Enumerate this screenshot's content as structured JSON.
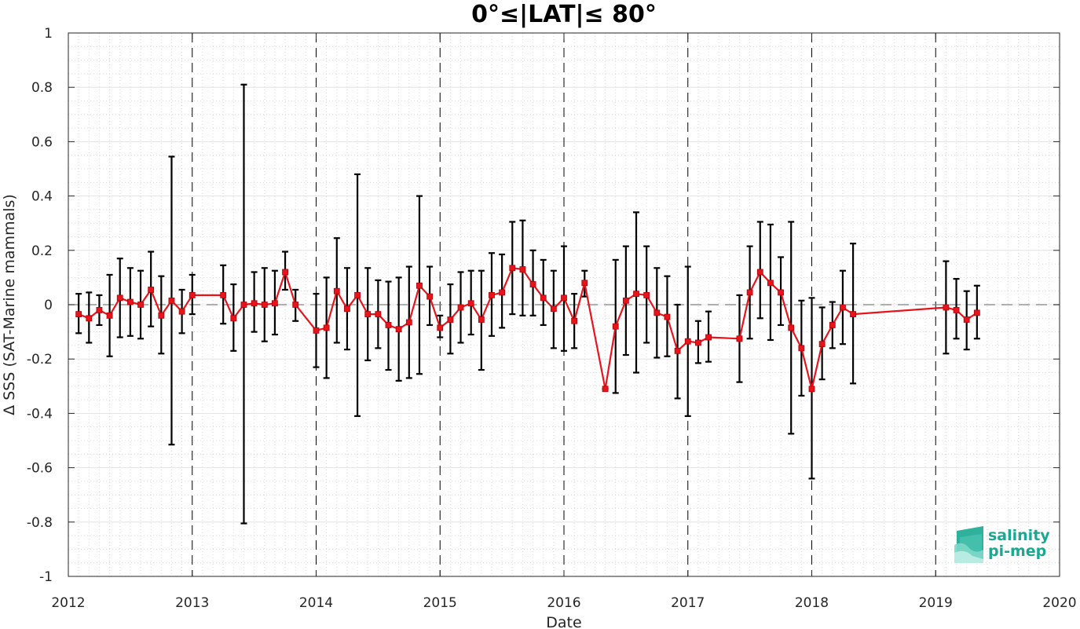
{
  "chart_data": {
    "type": "line",
    "title": "0°≤|LAT|≤ 80°",
    "xlabel": "Date",
    "ylabel": "Δ SSS (SAT-Marine mammals)",
    "xlim": [
      2012,
      2020
    ],
    "ylim": [
      -1,
      1
    ],
    "xticks": [
      "2012",
      "2013",
      "2014",
      "2015",
      "2016",
      "2017",
      "2018",
      "2019",
      "2020"
    ],
    "yticks": [
      "1",
      "0.8",
      "0.6",
      "0.4",
      "0.2",
      "0",
      "-0.2",
      "-0.4",
      "-0.6",
      "-0.8",
      "-1"
    ],
    "grid": true,
    "year_dividers": "dashed vertical lines at each year",
    "zero_line": "dashed horizontal line at 0",
    "colors": {
      "series": "#e8141c",
      "error_bars": "#000000",
      "zero_line": "#7f7f7f",
      "logo": "#1aa893"
    },
    "logo": {
      "line1": "salinity",
      "line2": "pi-mep"
    },
    "series": [
      {
        "x": [
          "2012-02",
          "2012-03",
          "2012-04",
          "2012-05",
          "2012-06",
          "2012-07",
          "2012-08",
          "2012-09",
          "2012-10",
          "2012-11",
          "2012-12",
          "2013-01",
          "2013-04",
          "2013-05",
          "2013-06",
          "2013-07",
          "2013-08",
          "2013-09",
          "2013-10",
          "2013-11",
          "2014-01",
          "2014-02",
          "2014-03",
          "2014-04",
          "2014-05",
          "2014-06",
          "2014-07",
          "2014-08",
          "2014-09",
          "2014-10",
          "2014-11",
          "2014-12",
          "2015-01",
          "2015-02",
          "2015-03",
          "2015-04",
          "2015-05",
          "2015-06",
          "2015-07",
          "2015-08",
          "2015-09",
          "2015-10",
          "2015-11",
          "2015-12",
          "2016-01",
          "2016-02",
          "2016-03",
          "2016-05",
          "2016-06",
          "2016-07",
          "2016-08",
          "2016-09",
          "2016-10",
          "2016-11",
          "2016-12",
          "2017-01",
          "2017-02",
          "2017-03",
          "2017-06",
          "2017-07",
          "2017-08",
          "2017-09",
          "2017-10",
          "2017-11",
          "2017-12",
          "2018-01",
          "2018-02",
          "2018-03",
          "2018-04",
          "2018-05",
          "2019-02",
          "2019-03",
          "2019-04",
          "2019-05"
        ],
        "y": [
          -0.035,
          -0.05,
          -0.02,
          -0.04,
          0.025,
          0.01,
          0.0,
          0.055,
          -0.04,
          0.015,
          -0.025,
          0.035,
          0.035,
          -0.05,
          0.0,
          0.005,
          0.0,
          0.005,
          0.12,
          0.0,
          -0.095,
          -0.085,
          0.05,
          -0.015,
          0.035,
          -0.035,
          -0.035,
          -0.075,
          -0.09,
          -0.065,
          0.07,
          0.03,
          -0.085,
          -0.055,
          -0.01,
          0.005,
          -0.055,
          0.035,
          0.045,
          0.135,
          0.13,
          0.075,
          0.025,
          -0.015,
          0.025,
          -0.06,
          0.08,
          -0.31,
          -0.08,
          0.015,
          0.04,
          0.035,
          -0.03,
          -0.045,
          -0.17,
          -0.135,
          -0.14,
          -0.12,
          -0.125,
          0.045,
          0.12,
          0.08,
          0.045,
          -0.085,
          -0.16,
          -0.31,
          -0.145,
          -0.075,
          -0.01,
          -0.035,
          -0.01,
          -0.02,
          -0.055,
          -0.03
        ],
        "err_low": [
          -0.105,
          -0.14,
          -0.075,
          -0.19,
          -0.12,
          -0.115,
          -0.125,
          -0.08,
          -0.18,
          -0.515,
          -0.105,
          -0.035,
          -0.07,
          -0.17,
          -0.805,
          -0.1,
          -0.135,
          -0.11,
          0.055,
          -0.06,
          -0.23,
          -0.27,
          -0.14,
          -0.165,
          -0.41,
          -0.205,
          -0.16,
          -0.24,
          -0.28,
          -0.27,
          -0.255,
          -0.075,
          -0.12,
          -0.18,
          -0.14,
          -0.11,
          -0.24,
          -0.115,
          -0.085,
          -0.035,
          -0.04,
          -0.04,
          -0.075,
          -0.16,
          -0.17,
          -0.16,
          0.03,
          -0.31,
          -0.325,
          -0.185,
          -0.25,
          -0.14,
          -0.195,
          -0.19,
          -0.345,
          -0.41,
          -0.215,
          -0.21,
          -0.285,
          -0.125,
          -0.05,
          -0.13,
          -0.075,
          -0.475,
          -0.335,
          -0.64,
          -0.275,
          -0.16,
          -0.145,
          -0.29,
          -0.18,
          -0.125,
          -0.165,
          -0.125
        ],
        "err_high": [
          0.04,
          0.045,
          0.035,
          0.11,
          0.17,
          0.135,
          0.125,
          0.195,
          0.105,
          0.545,
          0.055,
          0.11,
          0.145,
          0.075,
          0.81,
          0.12,
          0.135,
          0.125,
          0.195,
          0.055,
          0.04,
          0.1,
          0.245,
          0.135,
          0.48,
          0.135,
          0.09,
          0.085,
          0.1,
          0.14,
          0.4,
          0.14,
          -0.04,
          0.075,
          0.12,
          0.125,
          0.125,
          0.19,
          0.185,
          0.305,
          0.31,
          0.2,
          0.165,
          0.125,
          0.215,
          0.04,
          0.125,
          -0.31,
          0.165,
          0.215,
          0.34,
          0.215,
          0.135,
          0.105,
          0.0,
          0.14,
          -0.06,
          -0.025,
          0.035,
          0.215,
          0.305,
          0.295,
          0.175,
          0.305,
          0.015,
          0.025,
          -0.01,
          0.01,
          0.125,
          0.225,
          0.16,
          0.095,
          0.05,
          0.07
        ]
      }
    ]
  }
}
